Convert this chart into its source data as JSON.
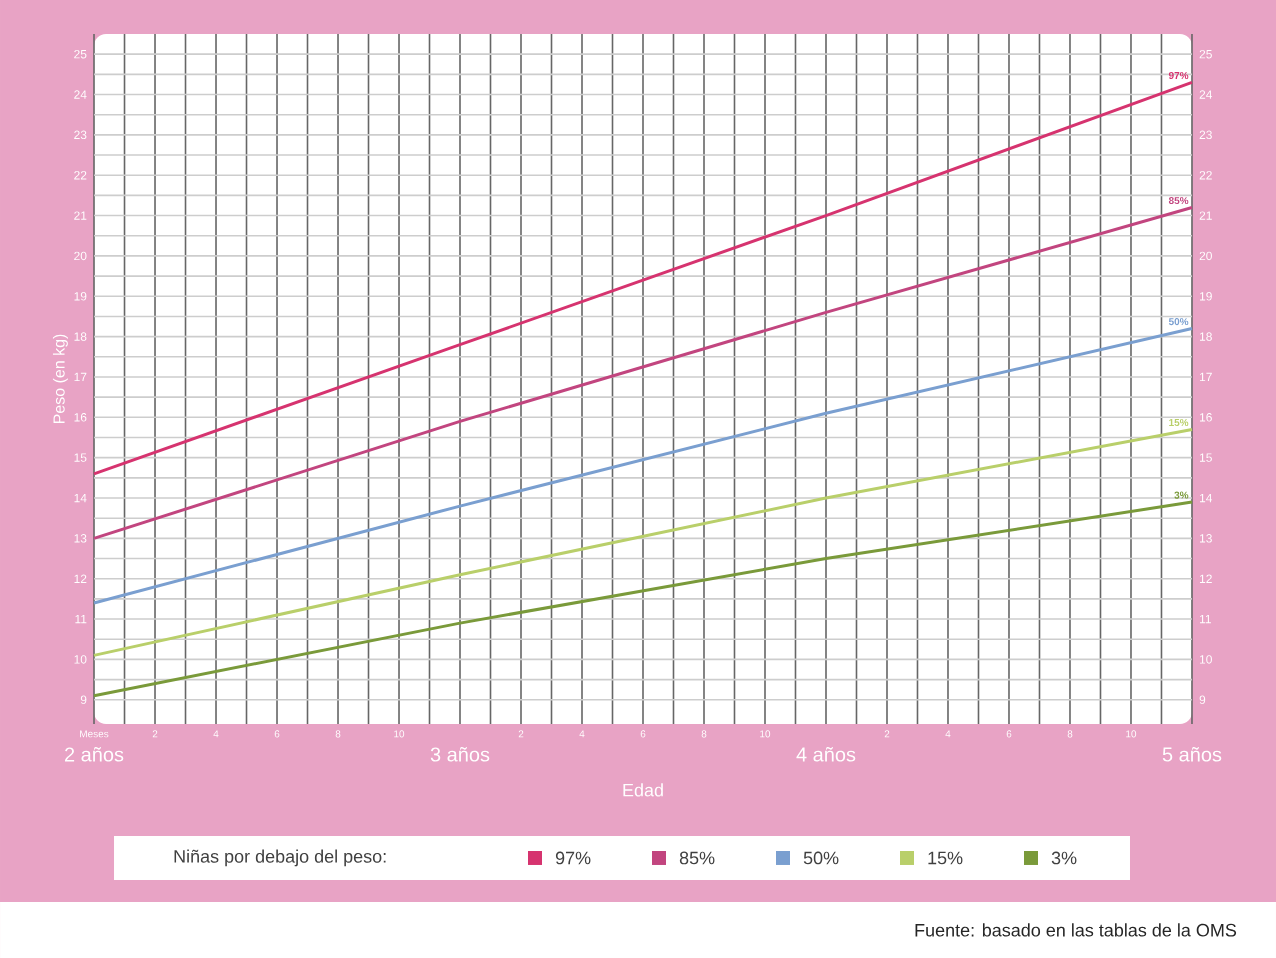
{
  "chart_data": {
    "type": "line",
    "xlabel": "Edad",
    "ylabel": "Peso (en kg)",
    "legend_title": "Niñas por debajo del peso:",
    "x": [
      2,
      3,
      4,
      5
    ],
    "series": [
      {
        "name": "97%",
        "color": "#d6336f",
        "values": [
          14.6,
          17.8,
          21.0,
          24.3
        ]
      },
      {
        "name": "85%",
        "color": "#c2457f",
        "values": [
          13.0,
          15.9,
          18.6,
          21.2
        ]
      },
      {
        "name": "50%",
        "color": "#7a9fd0",
        "values": [
          11.4,
          13.8,
          16.1,
          18.2
        ]
      },
      {
        "name": "15%",
        "color": "#b9cf6a",
        "values": [
          10.1,
          12.1,
          14.0,
          15.7
        ]
      },
      {
        "name": "3%",
        "color": "#7a9a3a",
        "values": [
          9.1,
          10.9,
          12.5,
          13.9
        ]
      }
    ],
    "xlim": [
      2,
      5
    ],
    "xticks": [
      {
        "value": 2,
        "label": "2 años"
      },
      {
        "value": 2.1667,
        "label": null
      },
      {
        "value": 2.3333,
        "label": null
      },
      {
        "value": 2.5,
        "label": null
      },
      {
        "value": 2.6667,
        "label": null
      },
      {
        "value": 2.8333,
        "label": null
      },
      {
        "value": 3,
        "label": "3 años"
      },
      {
        "value": 3.1667,
        "label": null
      },
      {
        "value": 3.3333,
        "label": null
      },
      {
        "value": 3.5,
        "label": null
      },
      {
        "value": 3.6667,
        "label": null
      },
      {
        "value": 3.8333,
        "label": null
      },
      {
        "value": 4,
        "label": "4 años"
      },
      {
        "value": 4.1667,
        "label": null
      },
      {
        "value": 4.3333,
        "label": null
      },
      {
        "value": 4.5,
        "label": null
      },
      {
        "value": 4.6667,
        "label": null
      },
      {
        "value": 4.8333,
        "label": null
      },
      {
        "value": 5,
        "label": "5 años"
      }
    ],
    "ylim": [
      8.4,
      25.5
    ],
    "yticks": [
      9,
      10,
      11,
      12,
      13,
      14,
      15,
      16,
      17,
      18,
      19,
      20,
      21,
      22,
      23,
      24,
      25
    ],
    "y2lim": [
      8.4,
      25.5
    ],
    "y2ticks": [
      9,
      10,
      11,
      12,
      13,
      14,
      15,
      16,
      17,
      18,
      19,
      20,
      21,
      22,
      23,
      24,
      25
    ],
    "grid": true,
    "legend": "bottom",
    "marker": "none",
    "line_style": "solid",
    "annotations": [
      "Meses",
      "2",
      "4",
      "6",
      "8",
      "10",
      "2",
      "4",
      "6",
      "8",
      "10",
      "2",
      "4",
      "6",
      "8",
      "10",
      "Fuente: basado en las tablas de la OMS"
    ]
  }
}
